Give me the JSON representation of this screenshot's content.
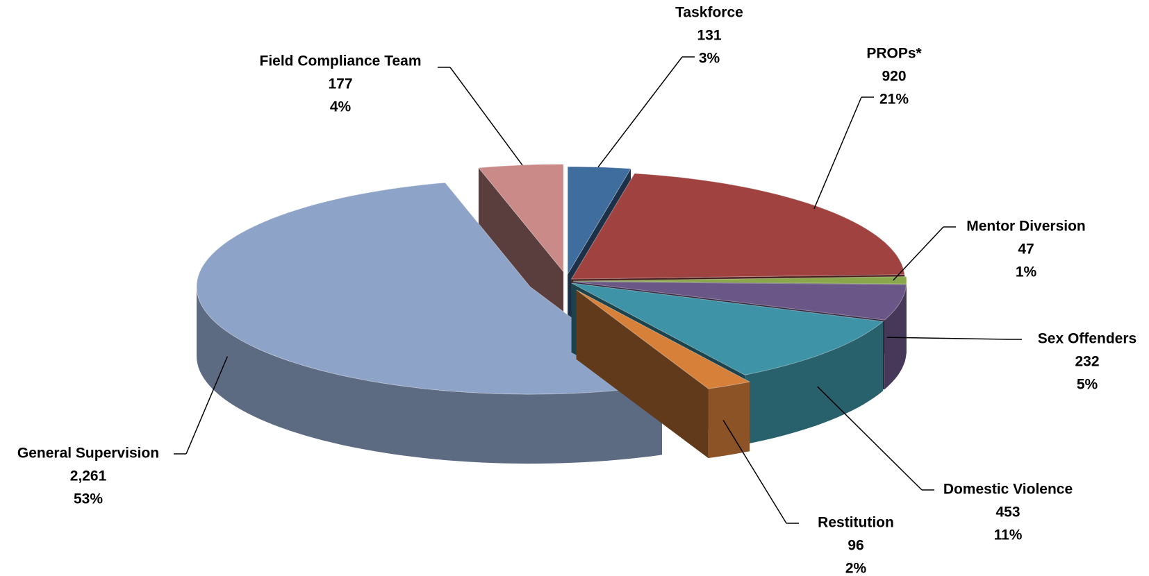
{
  "chart_data": {
    "type": "pie3d",
    "categories": [
      "Taskforce",
      "PROPs*",
      "Mentor Diversion",
      "Sex Offenders",
      "Domestic Violence",
      "Restitution",
      "General Supervision",
      "Field Compliance Team"
    ],
    "values": [
      131,
      920,
      47,
      232,
      453,
      96,
      2261,
      177
    ],
    "value_labels": [
      "131",
      "920",
      "47",
      "232",
      "453",
      "96",
      "2,261",
      "177"
    ],
    "percent_labels": [
      "3%",
      "21%",
      "1%",
      "5%",
      "11%",
      "2%",
      "53%",
      "4%"
    ],
    "colors": [
      "#3f6d9e",
      "#a04340",
      "#8aa84b",
      "#6b5688",
      "#3e93a6",
      "#d6803a",
      "#8ea3c8",
      "#c98a88"
    ]
  }
}
